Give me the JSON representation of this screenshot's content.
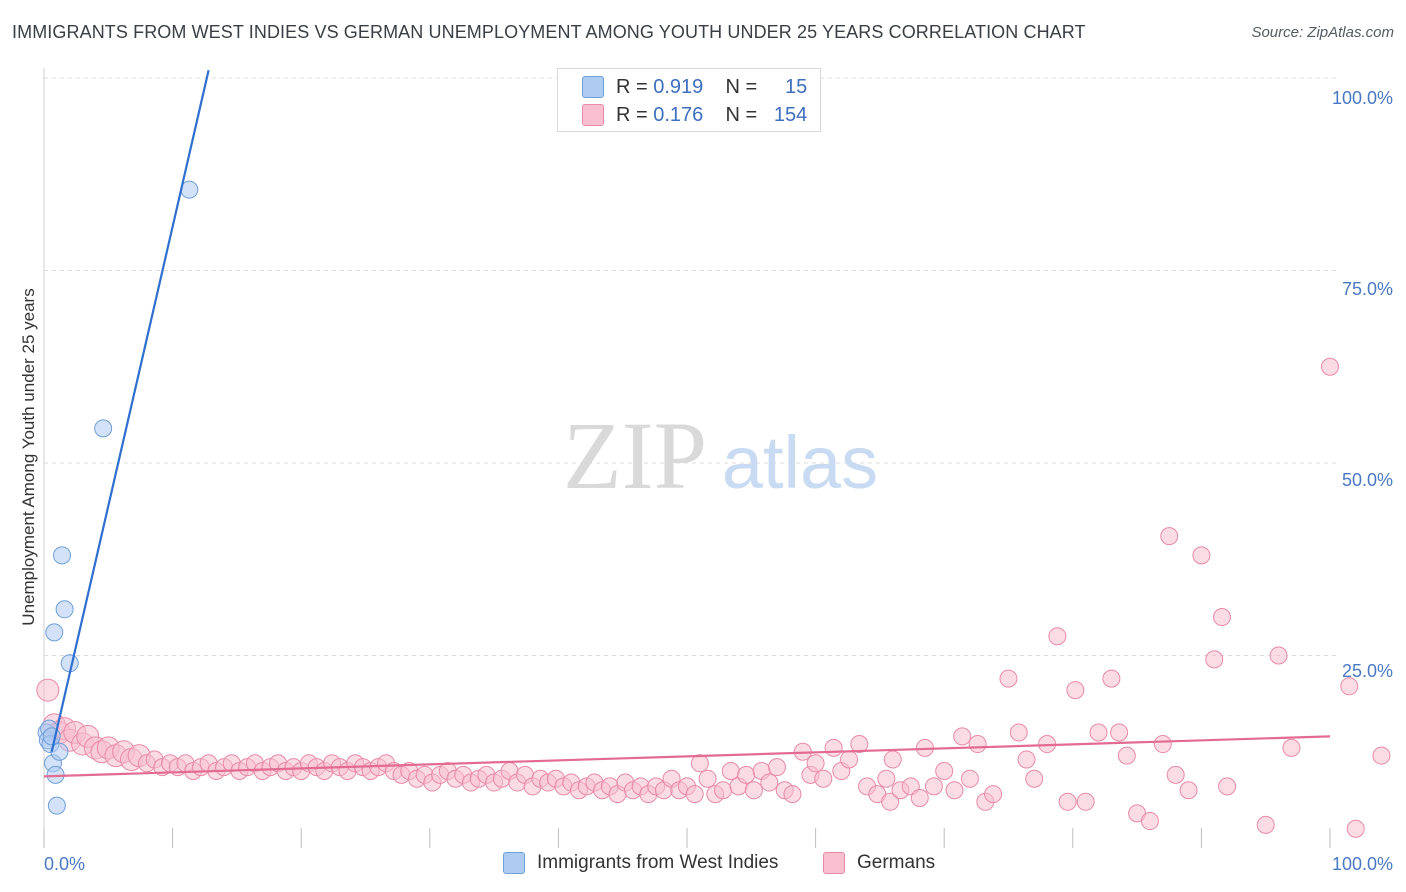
{
  "title": "IMMIGRANTS FROM WEST INDIES VS GERMAN UNEMPLOYMENT AMONG YOUTH UNDER 25 YEARS CORRELATION CHART",
  "source": "Source: ZipAtlas.com",
  "watermark": {
    "zip": "ZIP",
    "atlas": "atlas"
  },
  "legend": [
    {
      "r_label": "R =",
      "r_value": "0.919",
      "n_label": "N =",
      "n_value": "15",
      "color": "#aecbf2",
      "border": "#6f9fd8"
    },
    {
      "r_label": "R =",
      "r_value": "0.176",
      "n_label": "N =",
      "n_value": "154",
      "color": "#f7bfd0",
      "border": "#e98aa8"
    }
  ],
  "bottom_legend": [
    "Immigrants from West Indies",
    "Germans"
  ],
  "chart_data": {
    "type": "scatter",
    "title": "IMMIGRANTS FROM WEST INDIES VS GERMAN UNEMPLOYMENT AMONG YOUTH UNDER 25 YEARS CORRELATION CHART",
    "xlabel": "",
    "ylabel": "Unemployment Among Youth under 25 years",
    "xlim": [
      0,
      100
    ],
    "ylim": [
      0,
      100
    ],
    "x_tick_labels": [
      "0.0%",
      "100.0%"
    ],
    "y_tick_labels": [
      "25.0%",
      "50.0%",
      "75.0%",
      "100.0%"
    ],
    "y_ticks": [
      25,
      50,
      75,
      100
    ],
    "grid": true,
    "series": [
      {
        "name": "Immigrants from West Indies",
        "color": "#aecbf2",
        "stroke": "#6f9fd8",
        "line_color": "#2f6fcf",
        "trend": [
          [
            0.6,
            12.5
          ],
          [
            12.8,
            101
          ]
        ],
        "points": [
          [
            0.2,
            15.0
          ],
          [
            0.3,
            14.0
          ],
          [
            0.4,
            15.5
          ],
          [
            0.5,
            13.5
          ],
          [
            0.6,
            14.5
          ],
          [
            0.7,
            11.0
          ],
          [
            0.8,
            28.0
          ],
          [
            0.9,
            9.5
          ],
          [
            1.0,
            5.5
          ],
          [
            1.2,
            12.5
          ],
          [
            1.4,
            38.0
          ],
          [
            1.6,
            31.0
          ],
          [
            2.0,
            24.0
          ],
          [
            4.6,
            54.5
          ],
          [
            11.3,
            85.5
          ]
        ]
      },
      {
        "name": "Germans",
        "color": "#f7bfd0",
        "stroke": "#e98aa8",
        "line_color": "#e36a92",
        "trend": [
          [
            0,
            9.3
          ],
          [
            100,
            14.5
          ]
        ],
        "points": [
          [
            0.3,
            20.5
          ],
          [
            0.8,
            16.0
          ],
          [
            1.2,
            15.0
          ],
          [
            1.6,
            15.5
          ],
          [
            2.0,
            14.0
          ],
          [
            2.4,
            15.0
          ],
          [
            3.0,
            13.5
          ],
          [
            3.4,
            14.5
          ],
          [
            4.0,
            13.0
          ],
          [
            4.5,
            12.5
          ],
          [
            5.0,
            13.0
          ],
          [
            5.6,
            12.0
          ],
          [
            6.2,
            12.5
          ],
          [
            6.8,
            11.5
          ],
          [
            7.4,
            12.0
          ],
          [
            8.0,
            11.0
          ],
          [
            8.6,
            11.5
          ],
          [
            9.2,
            10.5
          ],
          [
            9.8,
            11.0
          ],
          [
            10.4,
            10.5
          ],
          [
            11.0,
            11.0
          ],
          [
            11.6,
            10.0
          ],
          [
            12.2,
            10.5
          ],
          [
            12.8,
            11.0
          ],
          [
            13.4,
            10.0
          ],
          [
            14.0,
            10.5
          ],
          [
            14.6,
            11.0
          ],
          [
            15.2,
            10.0
          ],
          [
            15.8,
            10.5
          ],
          [
            16.4,
            11.0
          ],
          [
            17.0,
            10.0
          ],
          [
            17.6,
            10.5
          ],
          [
            18.2,
            11.0
          ],
          [
            18.8,
            10.0
          ],
          [
            19.4,
            10.5
          ],
          [
            20.0,
            10.0
          ],
          [
            20.6,
            11.0
          ],
          [
            21.2,
            10.5
          ],
          [
            21.8,
            10.0
          ],
          [
            22.4,
            11.0
          ],
          [
            23.0,
            10.5
          ],
          [
            23.6,
            10.0
          ],
          [
            24.2,
            11.0
          ],
          [
            24.8,
            10.5
          ],
          [
            25.4,
            10.0
          ],
          [
            26.0,
            10.5
          ],
          [
            26.6,
            11.0
          ],
          [
            27.2,
            10.0
          ],
          [
            27.8,
            9.5
          ],
          [
            28.4,
            10.0
          ],
          [
            29.0,
            9.0
          ],
          [
            29.6,
            9.5
          ],
          [
            30.2,
            8.5
          ],
          [
            30.8,
            9.5
          ],
          [
            31.4,
            10.0
          ],
          [
            32.0,
            9.0
          ],
          [
            32.6,
            9.5
          ],
          [
            33.2,
            8.5
          ],
          [
            33.8,
            9.0
          ],
          [
            34.4,
            9.5
          ],
          [
            35.0,
            8.5
          ],
          [
            35.6,
            9.0
          ],
          [
            36.2,
            10.0
          ],
          [
            36.8,
            8.5
          ],
          [
            37.4,
            9.5
          ],
          [
            38.0,
            8.0
          ],
          [
            38.6,
            9.0
          ],
          [
            39.2,
            8.5
          ],
          [
            39.8,
            9.0
          ],
          [
            40.4,
            8.0
          ],
          [
            41.0,
            8.5
          ],
          [
            41.6,
            7.5
          ],
          [
            42.2,
            8.0
          ],
          [
            42.8,
            8.5
          ],
          [
            43.4,
            7.5
          ],
          [
            44.0,
            8.0
          ],
          [
            44.6,
            7.0
          ],
          [
            45.2,
            8.5
          ],
          [
            45.8,
            7.5
          ],
          [
            46.4,
            8.0
          ],
          [
            47.0,
            7.0
          ],
          [
            47.6,
            8.0
          ],
          [
            48.2,
            7.5
          ],
          [
            48.8,
            9.0
          ],
          [
            49.4,
            7.5
          ],
          [
            50.0,
            8.0
          ],
          [
            50.6,
            7.0
          ],
          [
            51.0,
            11.0
          ],
          [
            51.6,
            9.0
          ],
          [
            52.2,
            7.0
          ],
          [
            52.8,
            7.5
          ],
          [
            53.4,
            10.0
          ],
          [
            54.0,
            8.0
          ],
          [
            54.6,
            9.5
          ],
          [
            55.2,
            7.5
          ],
          [
            55.8,
            10.0
          ],
          [
            56.4,
            8.5
          ],
          [
            57.0,
            10.5
          ],
          [
            57.6,
            7.5
          ],
          [
            58.2,
            7.0
          ],
          [
            59.0,
            12.5
          ],
          [
            59.6,
            9.5
          ],
          [
            60.0,
            11.0
          ],
          [
            60.6,
            9.0
          ],
          [
            61.4,
            13.0
          ],
          [
            62.0,
            10.0
          ],
          [
            62.6,
            11.5
          ],
          [
            63.4,
            13.5
          ],
          [
            64.0,
            8.0
          ],
          [
            64.8,
            7.0
          ],
          [
            65.5,
            9.0
          ],
          [
            65.8,
            6.0
          ],
          [
            66.6,
            7.5
          ],
          [
            67.4,
            8.0
          ],
          [
            68.1,
            6.5
          ],
          [
            68.5,
            13.0
          ],
          [
            69.2,
            8.0
          ],
          [
            70.0,
            10.0
          ],
          [
            70.8,
            7.5
          ],
          [
            71.4,
            14.5
          ],
          [
            72.0,
            9.0
          ],
          [
            72.6,
            13.5
          ],
          [
            73.2,
            6.0
          ],
          [
            73.8,
            7.0
          ],
          [
            75.0,
            22.0
          ],
          [
            75.8,
            15.0
          ],
          [
            76.4,
            11.5
          ],
          [
            77.0,
            9.0
          ],
          [
            78.0,
            13.5
          ],
          [
            78.8,
            27.5
          ],
          [
            79.6,
            6.0
          ],
          [
            80.2,
            20.5
          ],
          [
            81.0,
            6.0
          ],
          [
            82.0,
            15.0
          ],
          [
            83.0,
            22.0
          ],
          [
            83.6,
            15.0
          ],
          [
            84.2,
            12.0
          ],
          [
            85.0,
            4.5
          ],
          [
            86.0,
            3.5
          ],
          [
            87.0,
            13.5
          ],
          [
            88.0,
            9.5
          ],
          [
            89.0,
            7.5
          ],
          [
            90.0,
            38.0
          ],
          [
            91.0,
            24.5
          ],
          [
            91.6,
            30.0
          ],
          [
            92.0,
            8.0
          ],
          [
            95.0,
            3.0
          ],
          [
            96.0,
            25.0
          ],
          [
            97.0,
            13.0
          ],
          [
            100.0,
            62.5
          ],
          [
            101.5,
            21.0
          ],
          [
            102.0,
            2.5
          ],
          [
            104.0,
            12.0
          ],
          [
            87.5,
            40.5
          ],
          [
            66.0,
            11.5
          ]
        ]
      }
    ]
  }
}
